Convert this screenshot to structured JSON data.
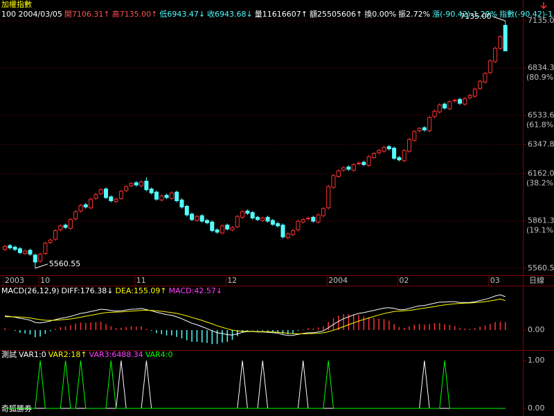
{
  "chart_data": [
    {
      "type": "candlestick",
      "title": "加權指數",
      "title_color": "#ffff00",
      "header": [
        {
          "text": "100 2004/03/05",
          "color": "#ffffff"
        },
        {
          "text": "開7106.31↑",
          "color": "#ff5050"
        },
        {
          "text": "高7135.00↑",
          "color": "#ff5050"
        },
        {
          "text": "低6943.47↓",
          "color": "#50ffff"
        },
        {
          "text": "收6943.68↓",
          "color": "#50ffff"
        },
        {
          "text": "量11616607↑",
          "color": "#ffffff"
        },
        {
          "text": "額25505606↑",
          "color": "#ffffff"
        },
        {
          "text": "換0.00%",
          "color": "#ffffff"
        },
        {
          "text": "振2.72%",
          "color": "#ffffff"
        },
        {
          "text": "漲(-90.42)-1.29%",
          "color": "#50ffff"
        },
        {
          "text": "指數(-90.42)-1.29%",
          "color": "#50ffff"
        }
      ],
      "up_color": "#ff3232",
      "down_color": "#54fcfc",
      "categories": [
        "2003",
        null,
        null,
        null,
        null,
        null,
        null,
        "10",
        null,
        null,
        null,
        null,
        null,
        null,
        null,
        null,
        null,
        null,
        null,
        null,
        null,
        null,
        null,
        null,
        null,
        null,
        "11",
        null,
        null,
        null,
        null,
        null,
        null,
        null,
        null,
        null,
        null,
        null,
        null,
        null,
        null,
        null,
        null,
        null,
        "12",
        null,
        null,
        null,
        null,
        null,
        null,
        null,
        null,
        null,
        null,
        null,
        null,
        null,
        null,
        null,
        null,
        null,
        null,
        null,
        "2004",
        null,
        null,
        null,
        null,
        null,
        null,
        null,
        null,
        null,
        null,
        null,
        null,
        null,
        "02",
        null,
        null,
        null,
        null,
        null,
        null,
        null,
        null,
        null,
        null,
        null,
        null,
        null,
        null,
        null,
        null,
        null,
        "03",
        null,
        null,
        null
      ],
      "period_label": "日線",
      "open": [
        5680,
        5705,
        5695,
        5685,
        5655,
        5675,
        5645,
        5605,
        5655,
        5725,
        5745,
        5805,
        5835,
        5815,
        5875,
        5925,
        5965,
        5945,
        6005,
        6035,
        6065,
        6015,
        5985,
        6005,
        6055,
        6085,
        6105,
        6085,
        6115,
        6065,
        6045,
        5995,
        6025,
        6005,
        6045,
        5995,
        5955,
        5905,
        5865,
        5895,
        5865,
        5855,
        5805,
        5785,
        5835,
        5805,
        5825,
        5885,
        5925,
        5915,
        5885,
        5865,
        5885,
        5865,
        5845,
        5835,
        5755,
        5775,
        5805,
        5855,
        5875,
        5885,
        5855,
        5895,
        5945,
        6075,
        6145,
        6185,
        6205,
        6185,
        6225,
        6235,
        6215,
        6265,
        6295,
        6305,
        6335,
        6325,
        6265,
        6245,
        6305,
        6375,
        6435,
        6455,
        6435,
        6525,
        6555,
        6605,
        6575,
        6625,
        6635,
        6605,
        6645,
        6655,
        6705,
        6745,
        6805,
        6875,
        6960,
        7106.31
      ],
      "high": [
        5710,
        5715,
        5705,
        5695,
        5680,
        5685,
        5655,
        5660,
        5730,
        5750,
        5810,
        5840,
        5845,
        5880,
        5930,
        5970,
        5975,
        6010,
        6040,
        6070,
        6075,
        6025,
        6010,
        6060,
        6090,
        6110,
        6115,
        6120,
        6140,
        6075,
        6055,
        6030,
        6035,
        6050,
        6055,
        6005,
        5965,
        5915,
        5900,
        5905,
        5875,
        5865,
        5815,
        5840,
        5845,
        5830,
        5900,
        5930,
        5935,
        5925,
        5895,
        5890,
        5895,
        5875,
        5855,
        5845,
        5790,
        5810,
        5870,
        5880,
        5890,
        5895,
        5910,
        5950,
        6090,
        6160,
        6190,
        6210,
        6215,
        6230,
        6240,
        6245,
        6280,
        6300,
        6320,
        6340,
        6345,
        6335,
        6275,
        6320,
        6390,
        6440,
        6460,
        6465,
        6530,
        6570,
        6610,
        6615,
        6630,
        6640,
        6645,
        6650,
        6670,
        6710,
        6760,
        6810,
        6890,
        6970,
        7044,
        7135
      ],
      "low": [
        5670,
        5680,
        5670,
        5650,
        5645,
        5640,
        5560.55,
        5595,
        5645,
        5715,
        5735,
        5795,
        5810,
        5805,
        5865,
        5915,
        5940,
        5935,
        5995,
        6025,
        6000,
        5980,
        5975,
        5995,
        6045,
        6075,
        6080,
        6075,
        6050,
        6030,
        5990,
        5985,
        6000,
        5995,
        5980,
        5940,
        5890,
        5860,
        5855,
        5850,
        5840,
        5790,
        5780,
        5775,
        5800,
        5795,
        5815,
        5875,
        5900,
        5870,
        5860,
        5855,
        5850,
        5830,
        5820,
        5750,
        5745,
        5765,
        5795,
        5845,
        5865,
        5850,
        5845,
        5885,
        5935,
        6065,
        6135,
        6175,
        6180,
        6175,
        6215,
        6210,
        6205,
        6255,
        6285,
        6295,
        6310,
        6250,
        6240,
        6235,
        6295,
        6365,
        6425,
        6430,
        6425,
        6515,
        6545,
        6570,
        6565,
        6615,
        6600,
        6595,
        6635,
        6645,
        6695,
        6735,
        6795,
        6865,
        6950,
        6943.47
      ],
      "close": [
        5700,
        5690,
        5680,
        5660,
        5670,
        5650,
        5600,
        5650,
        5720,
        5740,
        5800,
        5830,
        5820,
        5870,
        5920,
        5960,
        5950,
        6000,
        6030,
        6060,
        6010,
        5990,
        6000,
        6050,
        6080,
        6100,
        6090,
        6110,
        6060,
        6040,
        6000,
        6020,
        6010,
        6040,
        5990,
        5950,
        5900,
        5870,
        5890,
        5860,
        5850,
        5800,
        5790,
        5830,
        5810,
        5820,
        5890,
        5920,
        5910,
        5880,
        5870,
        5880,
        5860,
        5840,
        5830,
        5760,
        5780,
        5800,
        5860,
        5870,
        5880,
        5860,
        5900,
        5940,
        6080,
        6150,
        6180,
        6200,
        6190,
        6220,
        6230,
        6220,
        6270,
        6290,
        6310,
        6330,
        6320,
        6260,
        6250,
        6310,
        6380,
        6430,
        6450,
        6440,
        6520,
        6560,
        6600,
        6580,
        6620,
        6630,
        6610,
        6640,
        6660,
        6700,
        6750,
        6800,
        6880,
        6960,
        7034.1,
        6943.68
      ],
      "ylim": [
        5516,
        7179
      ],
      "yticks": [
        5560.5,
        5861.3,
        {
          "value": 6162,
          "label": "6162.0"
        },
        6347.8,
        6533.6,
        6834.3,
        {
          "value": 7135,
          "label": "7135.0"
        }
      ],
      "fib_labels": [
        {
          "value": 5861.3,
          "label": "(19.1%)"
        },
        {
          "value": 6162,
          "label": "(38.2%)"
        },
        {
          "value": 6533.6,
          "label": "(61.8%)"
        },
        {
          "value": 6834.3,
          "label": "(80.9%)"
        }
      ],
      "annotations": [
        {
          "label": "5560.55",
          "value": 5560.55,
          "index": 6,
          "side": "right"
        },
        {
          "label": "7135.00",
          "value": 7135,
          "index": 99,
          "side": "left"
        }
      ],
      "grid": true
    },
    {
      "type": "macd",
      "header": [
        {
          "text": "MACD(26,12,9)",
          "color": "#ffffff"
        },
        {
          "text": "DIFF:176.38↓",
          "color": "#ffffff"
        },
        {
          "text": "DEA:155.09↑",
          "color": "#ffff00"
        },
        {
          "text": "MACD:42.57↓",
          "color": "#ff40ff"
        }
      ],
      "series": [
        {
          "color": "#ffffff",
          "values": [
            75,
            72,
            68,
            62,
            58,
            52,
            40,
            38,
            42,
            48,
            55,
            62,
            66,
            72,
            80,
            88,
            92,
            98,
            104,
            110,
            108,
            104,
            100,
            102,
            106,
            110,
            111,
            114,
            108,
            102,
            94,
            88,
            82,
            78,
            70,
            60,
            48,
            36,
            28,
            18,
            8,
            -4,
            -14,
            -18,
            -24,
            -26,
            -20,
            -12,
            -8,
            -8,
            -10,
            -10,
            -12,
            -14,
            -16,
            -24,
            -28,
            -28,
            -22,
            -18,
            -14,
            -14,
            -10,
            -4,
            12,
            30,
            46,
            60,
            70,
            80,
            88,
            92,
            98,
            104,
            110,
            116,
            118,
            114,
            108,
            108,
            114,
            122,
            128,
            130,
            136,
            142,
            148,
            148,
            150,
            150,
            146,
            146,
            146,
            150,
            156,
            162,
            170,
            180,
            186,
            176.38
          ]
        },
        {
          "color": "#ffff00",
          "values": [
            70,
            71,
            70,
            69,
            67,
            64,
            59,
            55,
            52,
            51,
            52,
            54,
            56,
            59,
            63,
            68,
            73,
            78,
            83,
            88,
            92,
            94,
            95,
            96,
            98,
            100,
            102,
            104,
            105,
            104,
            102,
            99,
            96,
            92,
            88,
            82,
            75,
            67,
            59,
            51,
            42,
            33,
            23,
            15,
            7,
            0,
            -4,
            -6,
            -6,
            -7,
            -8,
            -8,
            -9,
            -10,
            -11,
            -14,
            -17,
            -19,
            -20,
            -20,
            -19,
            -18,
            -17,
            -14,
            -9,
            -1,
            8,
            18,
            28,
            38,
            48,
            56,
            64,
            72,
            80,
            87,
            93,
            98,
            100,
            102,
            104,
            108,
            112,
            116,
            120,
            124,
            129,
            133,
            136,
            139,
            141,
            142,
            143,
            145,
            147,
            150,
            154,
            159,
            164,
            155.09
          ]
        }
      ],
      "histogram": {
        "up_color": "#ff3232",
        "down_color": "#54fcfc",
        "values": [
          10,
          2,
          -4,
          -14,
          -18,
          -24,
          -38,
          -34,
          -20,
          -6,
          6,
          16,
          20,
          26,
          34,
          40,
          38,
          40,
          42,
          44,
          32,
          20,
          10,
          12,
          16,
          20,
          18,
          20,
          6,
          -4,
          -16,
          -22,
          -28,
          -28,
          -36,
          -44,
          -54,
          -62,
          -62,
          -66,
          -68,
          -74,
          -74,
          -66,
          -62,
          -52,
          -32,
          -12,
          -4,
          -2,
          -4,
          -4,
          -6,
          -8,
          -10,
          -20,
          -22,
          -18,
          -4,
          4,
          10,
          8,
          14,
          20,
          42,
          62,
          76,
          84,
          84,
          84,
          80,
          72,
          68,
          64,
          60,
          58,
          50,
          32,
          16,
          12,
          20,
          28,
          32,
          28,
          32,
          36,
          38,
          30,
          28,
          22,
          10,
          8,
          6,
          10,
          18,
          24,
          32,
          42,
          44,
          42.57
        ]
      },
      "ylim": [
        -106,
        231
      ],
      "yticks": [
        {
          "value": 0,
          "label": "0.00"
        }
      ]
    },
    {
      "type": "spike",
      "header": [
        {
          "text": "測試",
          "color": "#ffffff"
        },
        {
          "text": "VAR1:0",
          "color": "#ffffff"
        },
        {
          "text": "VAR2:18↑",
          "color": "#ffff00"
        },
        {
          "text": "VAR3:6488.34",
          "color": "#ff40ff"
        },
        {
          "text": "VAR4:0",
          "color": "#00ff00"
        }
      ],
      "series": [
        {
          "color": "#ffffff",
          "values": [
            0,
            0,
            0,
            0,
            0,
            0,
            0,
            0,
            0,
            0,
            0,
            0,
            0,
            0,
            0,
            0,
            0,
            0,
            0,
            0,
            0,
            0,
            0,
            1,
            0,
            0,
            0,
            0,
            1,
            0,
            0,
            0,
            0,
            0,
            0,
            0,
            0,
            0,
            0,
            0,
            0,
            0,
            0,
            0,
            0,
            0,
            0,
            1,
            0,
            0,
            0,
            1,
            0,
            0,
            0,
            0,
            0,
            0,
            0,
            1,
            0,
            0,
            0,
            0,
            0,
            0,
            0,
            0,
            0,
            0,
            0,
            0,
            0,
            0,
            0,
            0,
            0,
            0,
            0,
            0,
            0,
            0,
            0,
            1,
            0,
            0,
            0,
            0,
            0,
            0,
            0,
            0,
            0,
            0,
            0,
            0,
            0,
            0,
            0,
            0
          ]
        },
        {
          "color": "#00ff00",
          "values": [
            0,
            0,
            0,
            0,
            0,
            0,
            0,
            1,
            0,
            0,
            0,
            0,
            1,
            0,
            0,
            1,
            0,
            0,
            0,
            0,
            0,
            1,
            0,
            0,
            0,
            0,
            0,
            0,
            0,
            0,
            0,
            0,
            0,
            0,
            0,
            0,
            0,
            0,
            0,
            0,
            0,
            0,
            0,
            0,
            0,
            0,
            0,
            0,
            0,
            0,
            0,
            0,
            0,
            0,
            0,
            0,
            0,
            0,
            0,
            0,
            0,
            0,
            0,
            0,
            1,
            0,
            0,
            0,
            0,
            0,
            0,
            0,
            0,
            0,
            0,
            0,
            0,
            0,
            0,
            0,
            0,
            0,
            0,
            0,
            0,
            0,
            0,
            1,
            0,
            0,
            0,
            0,
            0,
            0,
            0,
            0,
            0,
            0,
            0,
            0
          ]
        }
      ],
      "ylim": [
        -0.13,
        1.22
      ],
      "yticks": [
        {
          "value": 1,
          "label": "1.00"
        },
        {
          "value": 0,
          "label": "0.00"
        }
      ]
    }
  ],
  "footer": "奇狐勝券"
}
